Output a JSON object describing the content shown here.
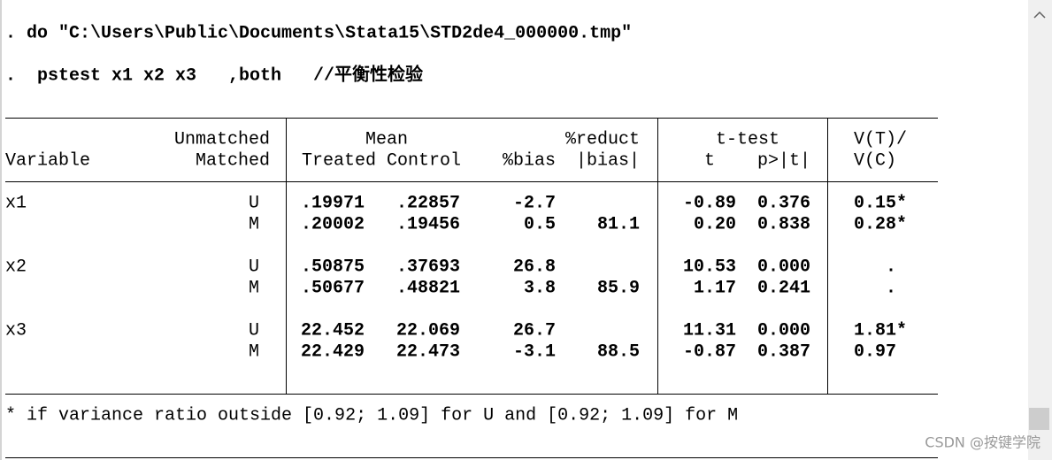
{
  "commands": [
    ". do \"C:\\Users\\Public\\Documents\\Stata15\\STD2de4_000000.tmp\"",
    ".  pstest x1 x2 x3   ,both   //平衡性检验"
  ],
  "table": {
    "headers": {
      "variable": "Variable",
      "unmatched": "Unmatched",
      "matched": "Matched",
      "mean": "Mean",
      "treated": "Treated",
      "control": "Control",
      "reduct": "%reduct",
      "bias": "%bias",
      "abs_bias": "|bias|",
      "ttest": "t-test",
      "t": "t",
      "p": "p>|t|",
      "vratio_top": "V(T)/",
      "vratio_bottom": "V(C)"
    },
    "rows": [
      {
        "variable": "x1",
        "samples": [
          {
            "sample": "U",
            "treated": ".19971",
            "control": ".22857",
            "bias": "-2.7",
            "reduct": null,
            "t": "-0.89",
            "p": "0.376",
            "vratio": "0.15*"
          },
          {
            "sample": "M",
            "treated": ".20002",
            "control": ".19456",
            "bias": "0.5",
            "reduct": "81.1",
            "t": "0.20",
            "p": "0.838",
            "vratio": "0.28*"
          }
        ]
      },
      {
        "variable": "x2",
        "samples": [
          {
            "sample": "U",
            "treated": ".50875",
            "control": ".37693",
            "bias": "26.8",
            "reduct": null,
            "t": "10.53",
            "p": "0.000",
            "vratio": "."
          },
          {
            "sample": "M",
            "treated": ".50677",
            "control": ".48821",
            "bias": "3.8",
            "reduct": "85.9",
            "t": "1.17",
            "p": "0.241",
            "vratio": "."
          }
        ]
      },
      {
        "variable": "x3",
        "samples": [
          {
            "sample": "U",
            "treated": "22.452",
            "control": "22.069",
            "bias": "26.7",
            "reduct": null,
            "t": "11.31",
            "p": "0.000",
            "vratio": "1.81*"
          },
          {
            "sample": "M",
            "treated": "22.429",
            "control": "22.473",
            "bias": "-3.1",
            "reduct": "88.5",
            "t": "-0.87",
            "p": "0.387",
            "vratio": "0.97"
          }
        ]
      }
    ]
  },
  "footnote": "* if variance ratio outside [0.92; 1.09] for U and [0.92; 1.09] for M",
  "watermark": "CSDN @按键学院"
}
